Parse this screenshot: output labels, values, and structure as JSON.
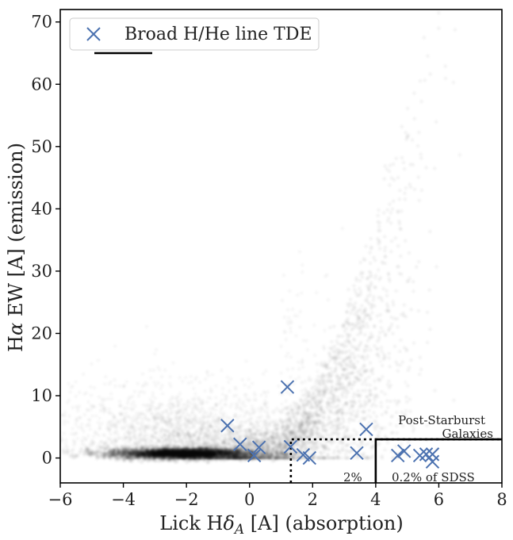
{
  "chart_data": {
    "type": "scatter",
    "xlabel_parts": [
      "Lick H",
      "δ",
      "A",
      " [A] (absorption)"
    ],
    "ylabel_parts": [
      "H",
      "α",
      " EW [A] (emission)"
    ],
    "xlim": [
      -6,
      8
    ],
    "ylim": [
      -4,
      72
    ],
    "xticks": [
      -6,
      -4,
      -2,
      0,
      2,
      4,
      6,
      8
    ],
    "xtick_labels": [
      "−6",
      "−4",
      "−2",
      "0",
      "2",
      "4",
      "6",
      "8"
    ],
    "yticks": [
      0,
      10,
      20,
      30,
      40,
      50,
      60,
      70
    ],
    "ytick_labels": [
      "0",
      "10",
      "20",
      "30",
      "40",
      "50",
      "60",
      "70"
    ],
    "grid": false,
    "legend": {
      "position": "top-left",
      "entries": [
        "Broad H/He line TDE"
      ]
    },
    "series": [
      {
        "name": "Broad H/He line TDE",
        "marker": "x",
        "color": "#4c72b0",
        "points": [
          [
            -0.7,
            5.2
          ],
          [
            -0.3,
            2.2
          ],
          [
            0.15,
            0.4
          ],
          [
            0.3,
            1.7
          ],
          [
            1.2,
            11.4
          ],
          [
            1.3,
            1.8
          ],
          [
            1.7,
            0.5
          ],
          [
            1.9,
            0.0
          ],
          [
            3.4,
            0.8
          ],
          [
            3.7,
            4.6
          ],
          [
            4.7,
            0.4
          ],
          [
            4.9,
            1.1
          ],
          [
            5.4,
            0.4
          ],
          [
            5.6,
            0.6
          ],
          [
            5.8,
            0.6
          ],
          [
            5.8,
            -0.6
          ]
        ]
      }
    ],
    "background": {
      "kind": "hexbin-density",
      "description": "SDSS galaxy distribution",
      "color": "#000000"
    },
    "regions": [
      {
        "label": "2%",
        "style": "dotted",
        "x_min": 1.31,
        "y_max": 3
      },
      {
        "label": "0.2% of SDSS",
        "style": "solid",
        "x_min": 4.0,
        "y_max": 3
      }
    ],
    "annotations": [
      "Post-Starburst",
      "Galaxies",
      "2%",
      "0.2% of SDSS"
    ]
  }
}
